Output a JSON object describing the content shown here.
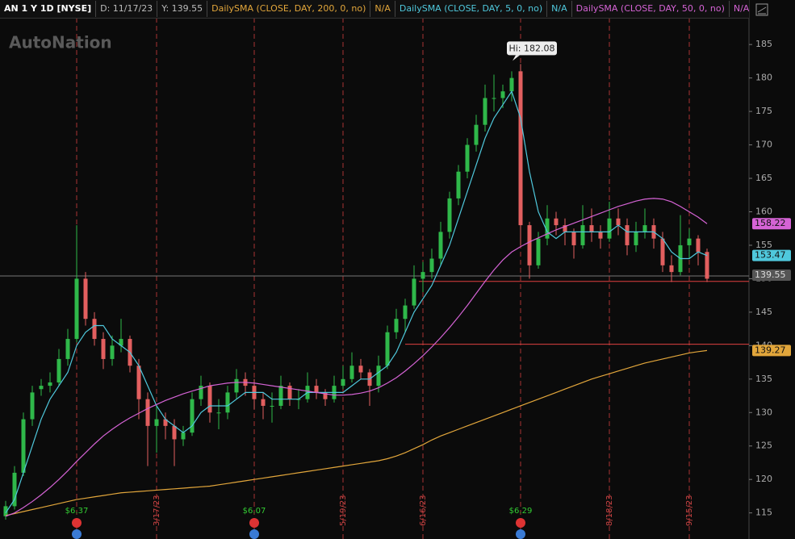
{
  "chart_data": {
    "type": "candlestick",
    "symbol": "AN 1 Y 1D [NYSE]",
    "date": "D: 11/17/23",
    "cursor": "Y: 139.55",
    "cursor_value_label": "139.55",
    "watermark": "AutoNation",
    "high_label": "Hi: 182.08",
    "categories": [
      null,
      null,
      null,
      null,
      null,
      null,
      null,
      null,
      null,
      null,
      null,
      null,
      null,
      null,
      null,
      null,
      null,
      "3/17/23",
      null,
      null,
      null,
      null,
      null,
      null,
      null,
      null,
      null,
      null,
      null,
      null,
      null,
      null,
      null,
      null,
      null,
      null,
      null,
      null,
      "5/19/23",
      null,
      null,
      null,
      null,
      null,
      null,
      null,
      null,
      "6/16/23",
      null,
      null,
      null,
      null,
      null,
      null,
      null,
      null,
      null,
      null,
      null,
      null,
      null,
      null,
      null,
      null,
      null,
      null,
      null,
      null,
      "8/18/23",
      null,
      null,
      null,
      null,
      null,
      null,
      null,
      null,
      "9/15/23",
      null,
      null
    ],
    "events": [
      null,
      null,
      null,
      null,
      null,
      null,
      null,
      null,
      "$6.37",
      null,
      null,
      null,
      null,
      null,
      null,
      null,
      null,
      null,
      null,
      null,
      null,
      null,
      null,
      null,
      null,
      null,
      null,
      null,
      "$6.07",
      null,
      null,
      null,
      null,
      null,
      null,
      null,
      null,
      null,
      null,
      null,
      null,
      null,
      null,
      null,
      null,
      null,
      null,
      null,
      null,
      null,
      null,
      null,
      null,
      null,
      null,
      null,
      null,
      null,
      "$6.29",
      null,
      null,
      null,
      null,
      null,
      null,
      null,
      null,
      null,
      null,
      null,
      null,
      null,
      null,
      null,
      null,
      null,
      null,
      null,
      null,
      null
    ],
    "open": [
      114.5,
      116,
      121,
      129,
      133.5,
      134,
      134.5,
      138,
      141,
      150,
      144,
      141,
      138,
      140,
      141,
      137,
      132,
      128,
      129,
      128,
      126,
      127,
      132,
      134,
      130,
      130,
      133,
      135,
      134,
      132,
      131,
      131,
      134,
      132,
      132,
      134,
      133,
      132,
      134,
      135,
      137,
      136,
      134,
      137,
      142,
      144,
      146,
      150,
      151,
      153,
      157,
      162,
      166,
      170,
      173,
      177,
      177,
      178,
      181,
      158,
      152,
      156,
      159,
      158,
      157,
      155,
      158,
      157,
      156,
      159,
      158,
      155,
      157,
      158,
      156,
      152,
      151,
      155,
      156,
      154
    ],
    "high": [
      116.8,
      122,
      130,
      134,
      135,
      136,
      139.5,
      142.5,
      158,
      151,
      145,
      142,
      141.5,
      144,
      141.5,
      138,
      133,
      131,
      130,
      129,
      128,
      133,
      135.5,
      134.5,
      132,
      134,
      136.5,
      136,
      135,
      133,
      133,
      135.5,
      134.5,
      133.5,
      136,
      135,
      133.5,
      135.5,
      137,
      139,
      138,
      136.5,
      138.5,
      143,
      145.5,
      147,
      152,
      152.5,
      154.5,
      158.5,
      163,
      167,
      171,
      174.5,
      179,
      180.5,
      179,
      181,
      182.08,
      158.5,
      157,
      161,
      160,
      159,
      157.5,
      161,
      160.5,
      158,
      161.5,
      160.5,
      159,
      158.5,
      160.5,
      159,
      157,
      153.5,
      159.5,
      157.5,
      156.5,
      154.5
    ],
    "low": [
      114,
      115.5,
      120.5,
      128,
      132.5,
      133,
      134,
      137,
      140.5,
      143,
      140,
      136.5,
      137,
      139,
      136,
      129,
      122,
      124,
      126,
      122,
      125,
      126.5,
      131,
      128.5,
      127.5,
      129,
      132,
      132.5,
      130.5,
      129,
      128.5,
      130.5,
      131,
      130.5,
      131.5,
      132,
      131,
      131.5,
      133.5,
      134.5,
      135,
      131,
      133,
      136.5,
      141,
      142,
      145.5,
      148,
      150,
      152,
      156,
      161,
      165,
      169,
      172,
      175,
      175.5,
      176.5,
      155,
      150,
      151.5,
      155,
      156.5,
      155,
      153,
      154.5,
      155.5,
      154.5,
      155.5,
      156.5,
      153.5,
      154,
      156,
      154.5,
      151,
      149.5,
      150.5,
      153,
      152,
      149.5
    ],
    "close": [
      116,
      121,
      129,
      133,
      134,
      134.5,
      138,
      141,
      150,
      144,
      141,
      138,
      140,
      141,
      137,
      132,
      128,
      129,
      128,
      126,
      127,
      132,
      134,
      130,
      130,
      133,
      135,
      134,
      132,
      131,
      131,
      134,
      132,
      132,
      134,
      133,
      132,
      134,
      135,
      137,
      136,
      134,
      137,
      142,
      144,
      146,
      150,
      151,
      153,
      157,
      162,
      166,
      170,
      173,
      177,
      177,
      178,
      180,
      158,
      152,
      156,
      159,
      158,
      157,
      155,
      158,
      157,
      156,
      159,
      158,
      155,
      157,
      158,
      156,
      152,
      151,
      155,
      156,
      154,
      150
    ],
    "up_color": "#2fb84a",
    "down_color": "#e25f5f",
    "series": [
      {
        "name": "DailySMA (CLOSE, DAY, 200, 0, no)",
        "status": "N/A",
        "color": "#e2a63b",
        "values": [
          114.6,
          114.9,
          115.2,
          115.5,
          115.8,
          116.1,
          116.4,
          116.7,
          117,
          117.2,
          117.4,
          117.6,
          117.8,
          118,
          118.1,
          118.2,
          118.3,
          118.4,
          118.5,
          118.6,
          118.7,
          118.8,
          118.9,
          119,
          119.2,
          119.4,
          119.6,
          119.8,
          120,
          120.2,
          120.4,
          120.6,
          120.8,
          121,
          121.2,
          121.4,
          121.6,
          121.8,
          122,
          122.2,
          122.4,
          122.6,
          122.8,
          123.1,
          123.5,
          124,
          124.6,
          125.2,
          125.9,
          126.5,
          127,
          127.5,
          128,
          128.5,
          129,
          129.5,
          130,
          130.5,
          131,
          131.5,
          132,
          132.5,
          133,
          133.5,
          134,
          134.5,
          135,
          135.4,
          135.8,
          136.2,
          136.6,
          137,
          137.4,
          137.7,
          138,
          138.3,
          138.6,
          138.9,
          139.1,
          139.27
        ]
      },
      {
        "name": "DailySMA (CLOSE, DAY, 5, 0, no)",
        "status": "N/A",
        "color": "#4fc8dc",
        "values": [
          115,
          117,
          121,
          125,
          129,
          132,
          134,
          136,
          140,
          142,
          143,
          143,
          141,
          140,
          139,
          137,
          134,
          131,
          129,
          128,
          127,
          128,
          130,
          131,
          131,
          131,
          132,
          133,
          133,
          133,
          132,
          132,
          132,
          132,
          133,
          133,
          133,
          133,
          133,
          134,
          135,
          135,
          136,
          137,
          139,
          142,
          145,
          147,
          149,
          152,
          155,
          159,
          163,
          167,
          171,
          174,
          176,
          178,
          174,
          166,
          160,
          157,
          156,
          157,
          157,
          157,
          157,
          157,
          157,
          158,
          157,
          157,
          157,
          157,
          156,
          154,
          153,
          153,
          154,
          153.47
        ]
      },
      {
        "name": "DailySMA (CLOSE, DAY, 50, 0, no)",
        "status": "N/A",
        "color": "#d563d5",
        "values": [
          114.5,
          115,
          115.8,
          116.7,
          117.7,
          118.8,
          120,
          121.3,
          122.7,
          124,
          125.3,
          126.5,
          127.5,
          128.4,
          129.2,
          129.9,
          130.6,
          131.2,
          131.8,
          132.3,
          132.8,
          133.2,
          133.6,
          134,
          134.2,
          134.4,
          134.5,
          134.5,
          134.4,
          134.2,
          134,
          133.8,
          133.6,
          133.4,
          133.2,
          133,
          132.8,
          132.6,
          132.6,
          132.7,
          132.9,
          133.2,
          133.7,
          134.4,
          135.2,
          136.2,
          137.3,
          138.5,
          139.8,
          141.2,
          142.7,
          144.3,
          146,
          147.8,
          149.6,
          151.3,
          152.8,
          154,
          154.8,
          155.5,
          156.1,
          156.7,
          157.3,
          157.8,
          158.3,
          158.8,
          159.3,
          159.8,
          160.3,
          160.8,
          161.2,
          161.6,
          161.9,
          162,
          161.9,
          161.5,
          160.8,
          160,
          159.2,
          158.22
        ]
      }
    ],
    "hlines": [
      149.6,
      140.2
    ],
    "ylim": [
      111.1,
      189
    ],
    "yticks": [
      115,
      120,
      125,
      130,
      135,
      140,
      145,
      150,
      155,
      160,
      165,
      170,
      175,
      180,
      185
    ]
  }
}
